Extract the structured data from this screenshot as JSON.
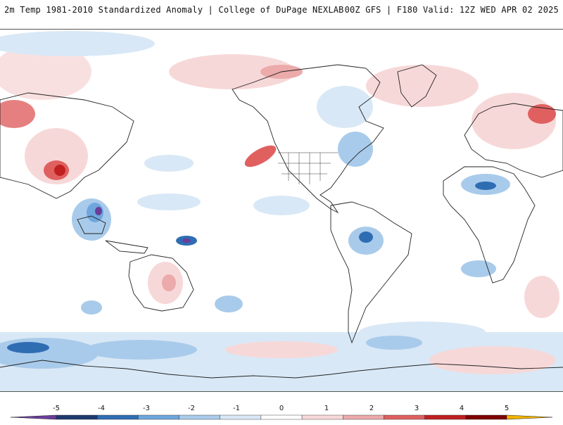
{
  "header": {
    "left_title": "2m Temp 1981-2010 Standardized Anomaly | College of DuPage NEXLAB",
    "right_title": "00Z GFS | F180 Valid: 12Z WED APR 02 2025"
  },
  "colorbar": {
    "ticks": [
      "-5",
      "-4",
      "-3",
      "-2",
      "-1",
      "0",
      "1",
      "2",
      "3",
      "4",
      "5"
    ],
    "colors": [
      "#6a3d9a",
      "#1f3a6e",
      "#2f6db3",
      "#6ea6dd",
      "#a9cbeb",
      "#d9e8f6",
      "#ffffff",
      "#f7d8d8",
      "#ecaaaa",
      "#e06060",
      "#c02020",
      "#7f0000",
      "#f0b400"
    ]
  }
}
